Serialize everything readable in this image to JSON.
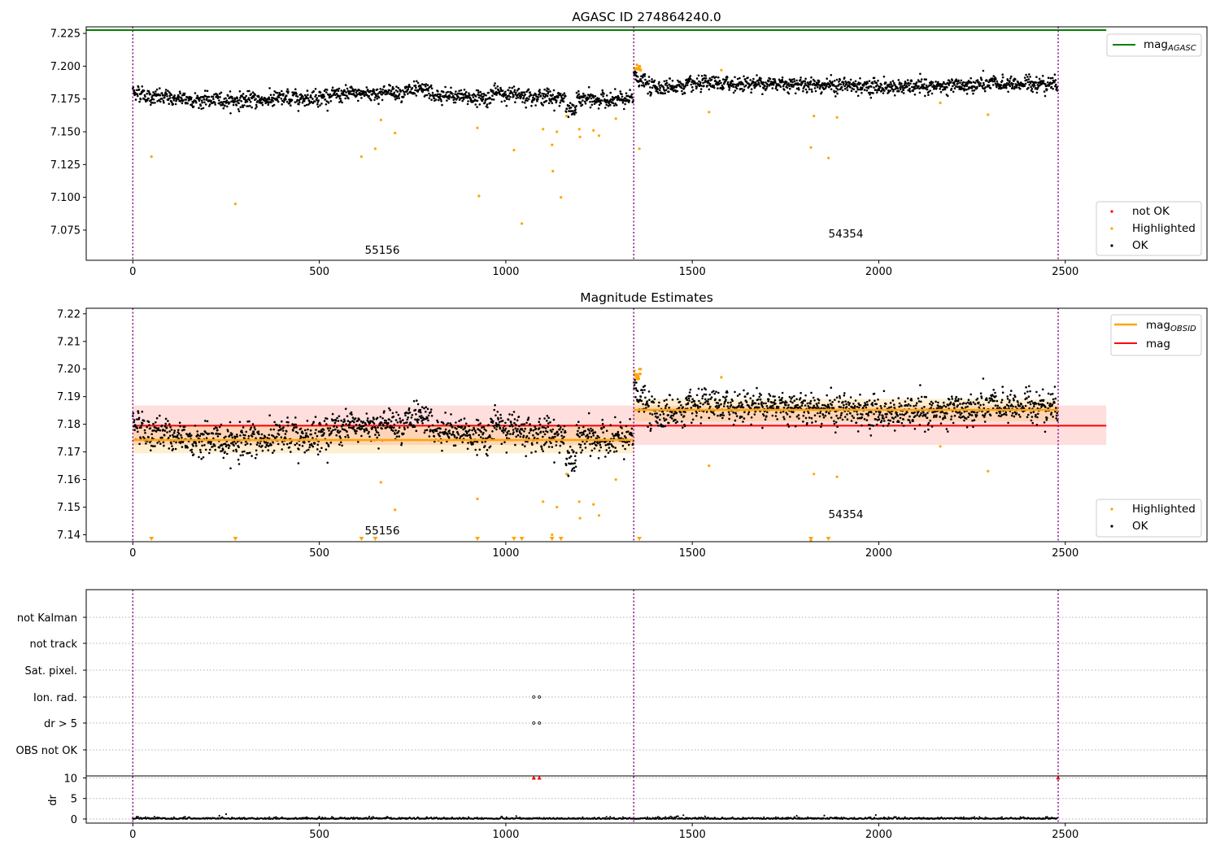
{
  "chart_data": [
    {
      "type": "scatter",
      "title": "AGASC ID 274864240.0",
      "xlim": [
        -125,
        2880
      ],
      "ylim": [
        7.052,
        7.23
      ],
      "yticks": [
        "7.075",
        "7.100",
        "7.125",
        "7.150",
        "7.175",
        "7.200",
        "7.225"
      ],
      "xticks": [
        "0",
        "500",
        "1000",
        "1500",
        "2000",
        "2500"
      ],
      "vlines": [
        0,
        1343,
        2481
      ],
      "hline": {
        "name": "mag_AGASC",
        "y": 7.2275,
        "x": [
          -125,
          2610
        ],
        "color": "#008000"
      },
      "segments": [
        {
          "obsid": "55156",
          "x": [
            0,
            1343
          ],
          "label_pos": [
            668,
            7.0585
          ],
          "ok_base": 7.176,
          "ok_noise": 0.0032
        },
        {
          "obsid": "54354",
          "x": [
            1343,
            2481
          ],
          "label_pos": [
            1905,
            7.0708
          ],
          "ok_base": 7.186,
          "ok_noise": 0.003
        }
      ],
      "series_ok": {
        "name": "OK",
        "color": "#000000",
        "count": 2480
      },
      "highlighted": {
        "name": "Highlighted",
        "color": "#ffa500",
        "points": [
          [
            50,
            7.131
          ],
          [
            275,
            7.095
          ],
          [
            613,
            7.131
          ],
          [
            650,
            7.137
          ],
          [
            665,
            7.159
          ],
          [
            703,
            7.149
          ],
          [
            924,
            7.153
          ],
          [
            928,
            7.101
          ],
          [
            1022,
            7.136
          ],
          [
            1043,
            7.08
          ],
          [
            1100,
            7.152
          ],
          [
            1124,
            7.14
          ],
          [
            1126,
            7.12
          ],
          [
            1137,
            7.15
          ],
          [
            1148,
            7.1
          ],
          [
            1163,
            7.162
          ],
          [
            1197,
            7.152
          ],
          [
            1199,
            7.146
          ],
          [
            1235,
            7.151
          ],
          [
            1250,
            7.147
          ],
          [
            1295,
            7.16
          ],
          [
            1358,
            7.137
          ],
          [
            1545,
            7.165
          ],
          [
            1578,
            7.197
          ],
          [
            1818,
            7.138
          ],
          [
            1826,
            7.162
          ],
          [
            1865,
            7.13
          ],
          [
            1888,
            7.161
          ],
          [
            2165,
            7.172
          ],
          [
            2293,
            7.163
          ]
        ]
      },
      "legends": [
        {
          "position": "upper right",
          "entries": [
            {
              "label": "mag",
              "subscript": "AGASC",
              "kind": "line",
              "color": "#008000"
            }
          ]
        },
        {
          "position": "lower right",
          "entries": [
            {
              "label": "not OK",
              "kind": "dot",
              "color": "#ff0000"
            },
            {
              "label": "Highlighted",
              "kind": "dot",
              "color": "#ffa500"
            },
            {
              "label": "OK",
              "kind": "dot",
              "color": "#000000"
            }
          ]
        }
      ]
    },
    {
      "type": "scatter",
      "title": "Magnitude Estimates",
      "xlim": [
        -125,
        2880
      ],
      "ylim": [
        7.1375,
        7.222
      ],
      "yticks": [
        "7.14",
        "7.15",
        "7.16",
        "7.17",
        "7.18",
        "7.19",
        "7.20",
        "7.21",
        "7.22"
      ],
      "xticks": [
        "0",
        "500",
        "1000",
        "1500",
        "2000",
        "2500"
      ],
      "vlines": [
        0,
        1343,
        2481
      ],
      "mag": {
        "name": "mag",
        "y": 7.1795,
        "band": [
          7.1725,
          7.1868
        ],
        "x": [
          0,
          2610
        ],
        "color": "#ff0000"
      },
      "mag_obsid": [
        {
          "x": [
            0,
            1343
          ],
          "y": 7.1743,
          "band": [
            7.1695,
            7.1795
          ]
        },
        {
          "x": [
            1343,
            2481
          ],
          "y": 7.1852,
          "band": [
            7.181,
            7.1892
          ]
        }
      ],
      "mag_obsid_name": "mag_OBSID",
      "segments": [
        {
          "obsid": "55156",
          "label_pos": [
            668,
            7.1395
          ]
        },
        {
          "obsid": "54354",
          "label_pos": [
            1905,
            7.1458
          ]
        }
      ],
      "offscale_markers": [
        50,
        275,
        613,
        650,
        924,
        1022,
        1043,
        1124,
        1148,
        1358,
        1818,
        1865
      ],
      "legends": [
        {
          "position": "upper right",
          "entries": [
            {
              "label": "mag",
              "subscript": "OBSID",
              "kind": "line",
              "color": "#ffa500"
            },
            {
              "label": "mag",
              "kind": "line",
              "color": "#ff0000"
            }
          ]
        },
        {
          "position": "lower right",
          "entries": [
            {
              "label": "Highlighted",
              "kind": "dot",
              "color": "#ffa500"
            },
            {
              "label": "OK",
              "kind": "dot",
              "color": "#000000"
            }
          ]
        }
      ]
    },
    {
      "type": "scatter",
      "title": "",
      "xlim": [
        -125,
        2880
      ],
      "xticks": [
        "0",
        "500",
        "1000",
        "1500",
        "2000",
        "2500"
      ],
      "flags": [
        "not Kalman",
        "not track",
        "Sat. pixel.",
        "Ion. rad.",
        "dr > 5",
        "OBS not OK"
      ],
      "flag_points": {
        "Ion. rad.": [
          1075,
          1090
        ],
        "dr > 5": [
          1075,
          1090
        ]
      },
      "dr": {
        "ylabel": "dr",
        "yticks": [
          "0",
          "5",
          "10"
        ],
        "ylim": [
          -1,
          10.5
        ],
        "flagged_x": [
          1075,
          1090,
          2481
        ]
      }
    }
  ]
}
